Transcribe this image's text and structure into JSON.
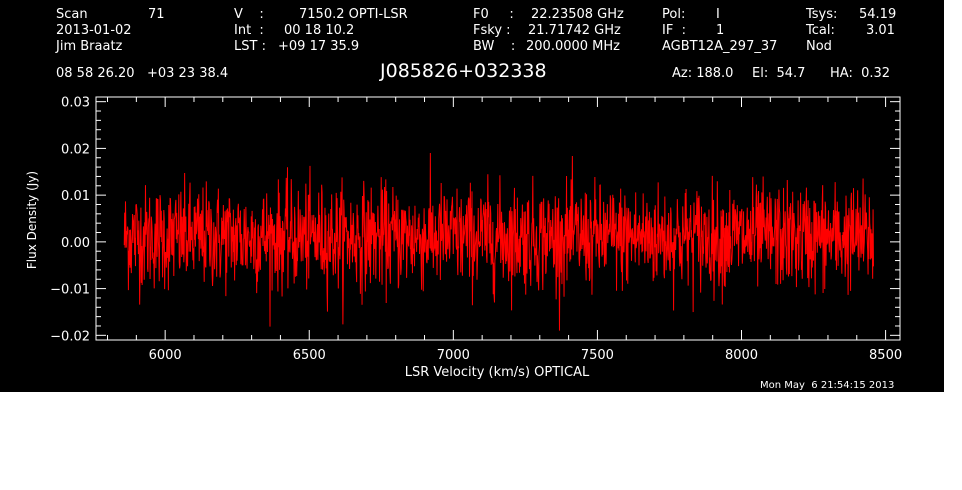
{
  "header": {
    "scan_label": "Scan",
    "scan_value": "71",
    "date": "2013-01-02",
    "observer": "Jim Braatz",
    "v_label": "V    :",
    "v_value": "7150.2 OPTI-LSR",
    "int_label": "Int  :",
    "int_value": "00 18 10.2",
    "lst_label": "LST :",
    "lst_value": "+09 17 35.9",
    "f0_label": "F0     :",
    "f0_value": "22.23508 GHz",
    "fsky_label": "Fsky :",
    "fsky_value": "21.71742 GHz",
    "bw_label": "BW    :",
    "bw_value": "200.0000 MHz",
    "pol_label": "Pol:",
    "pol_value": "I",
    "if_label": "IF  :",
    "if_value": "1",
    "project": "AGBT12A_297_37",
    "tsys_label": "Tsys:",
    "tsys_value": "54.19",
    "tcal_label": "Tcal:",
    "tcal_value": "3.01",
    "mode": "Nod",
    "coords": "08 58 26.20   +03 23 38.4",
    "source": "J085826+032338",
    "az": "Az: 188.0",
    "el": "El:  54.7",
    "ha": "HA:  0.32",
    "timestamp": "Mon May  6 21:54:15 2013"
  },
  "colors": {
    "background": "#000000",
    "foreground": "#ffffff",
    "trace": "#ff0000"
  },
  "chart_data": {
    "type": "line",
    "title": "",
    "xlabel": "LSR Velocity (km/s) OPTICAL",
    "ylabel": "Flux Density (Jy)",
    "xlim": [
      5760,
      8550
    ],
    "ylim": [
      -0.021,
      0.031
    ],
    "xticks": [
      6000,
      6500,
      7000,
      7500,
      8000,
      8500
    ],
    "xtick_labels": [
      "6000",
      "6500",
      "7000",
      "7500",
      "8000",
      "8500"
    ],
    "yticks": [
      -0.02,
      -0.01,
      0.0,
      0.01,
      0.02,
      0.03
    ],
    "ytick_labels": [
      "−0.02",
      "−0.01",
      "0.00",
      "0.01",
      "0.02",
      "0.03"
    ],
    "series": [
      {
        "x_start": 5858,
        "x_end": 8458,
        "noise_sigma": 0.0055,
        "baseline": 0.001,
        "peak_max": 0.022,
        "peak_min": -0.019,
        "n_points": 1800,
        "color": "#ff0000"
      }
    ]
  }
}
